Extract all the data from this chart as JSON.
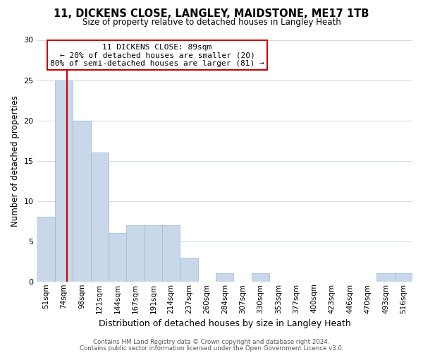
{
  "title": "11, DICKENS CLOSE, LANGLEY, MAIDSTONE, ME17 1TB",
  "subtitle": "Size of property relative to detached houses in Langley Heath",
  "xlabel": "Distribution of detached houses by size in Langley Heath",
  "ylabel": "Number of detached properties",
  "bar_labels": [
    "51sqm",
    "74sqm",
    "98sqm",
    "121sqm",
    "144sqm",
    "167sqm",
    "191sqm",
    "214sqm",
    "237sqm",
    "260sqm",
    "284sqm",
    "307sqm",
    "330sqm",
    "353sqm",
    "377sqm",
    "400sqm",
    "423sqm",
    "446sqm",
    "470sqm",
    "493sqm",
    "516sqm"
  ],
  "bar_values": [
    8,
    25,
    20,
    16,
    6,
    7,
    7,
    7,
    3,
    0,
    1,
    0,
    1,
    0,
    0,
    0,
    0,
    0,
    0,
    1,
    1
  ],
  "bar_color": "#c8d8ea",
  "bar_edge_color": "#9ab8cc",
  "vline_x": 1.18,
  "vline_color": "#cc0000",
  "ylim": [
    0,
    30
  ],
  "yticks": [
    0,
    5,
    10,
    15,
    20,
    25,
    30
  ],
  "annotation_title": "11 DICKENS CLOSE: 89sqm",
  "annotation_line1": "← 20% of detached houses are smaller (20)",
  "annotation_line2": "80% of semi-detached houses are larger (81) →",
  "annotation_box_color": "#ffffff",
  "annotation_border_color": "#cc0000",
  "footer1": "Contains HM Land Registry data © Crown copyright and database right 2024.",
  "footer2": "Contains public sector information licensed under the Open Government Licence v3.0.",
  "background_color": "#ffffff",
  "grid_color": "#d0dce8"
}
